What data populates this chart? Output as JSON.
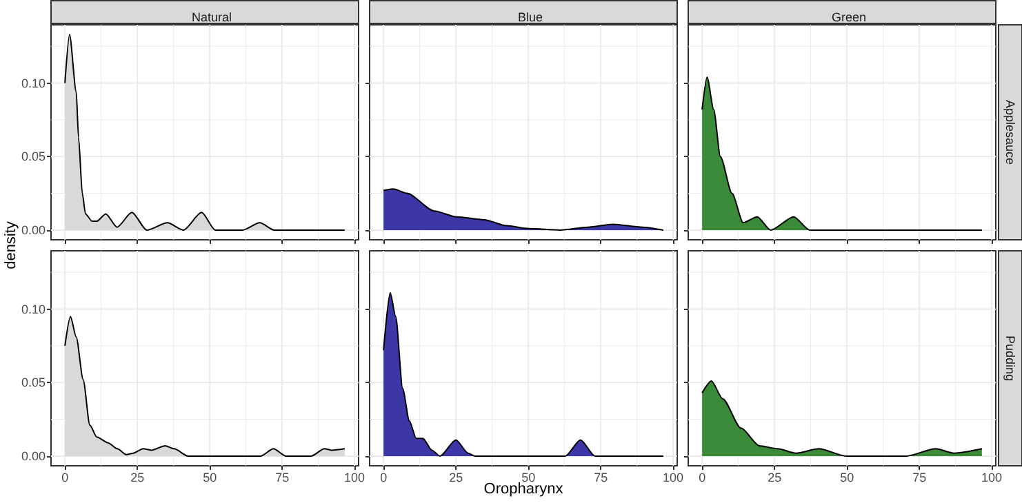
{
  "chart_data": [
    {
      "type": "area",
      "title": "Natural",
      "ylabel": "density",
      "xlim": [
        -4.8,
        101.4
      ],
      "ylim": [
        -0.0066,
        0.1396
      ],
      "xticks": [
        0,
        25,
        50,
        75,
        100
      ],
      "yticks": [
        {
          "value": 0,
          "label": "0.00"
        },
        {
          "value": 0.05,
          "label": "0.05"
        },
        {
          "value": 0.1,
          "label": "0.10"
        }
      ],
      "tick_labels": "y",
      "grid": true,
      "series": [
        {
          "color": "#d9d9d9",
          "x": [
            0,
            1.6,
            3.9,
            4.7,
            6,
            7.1,
            9.4,
            11,
            14.1,
            18,
            23.1,
            28.3,
            35.4,
            40.9,
            47.2,
            51.9,
            61.3,
            67.3,
            72.3,
            96.6
          ],
          "values": [
            0.1,
            0.133,
            0.094,
            0.063,
            0.025,
            0.011,
            0.006,
            0.006,
            0.011,
            0.002,
            0.012,
            0,
            0.005,
            0,
            0.012,
            0,
            0,
            0.005,
            0,
            0
          ]
        }
      ]
    },
    {
      "type": "area",
      "title": "Blue",
      "xlim": [
        -4.8,
        101.4
      ],
      "ylim": [
        -0.0066,
        0.1396
      ],
      "xticks": [
        0,
        25,
        50,
        75,
        100
      ],
      "yticks": [
        0,
        0.05,
        0.1
      ],
      "tick_labels": false,
      "grid": true,
      "series": [
        {
          "color": "#3c36a6",
          "x": [
            0,
            3.4,
            8.1,
            17.5,
            25.3,
            34.7,
            42.5,
            50.3,
            61,
            70.6,
            79.2,
            89.4,
            96.6
          ],
          "values": [
            0.027,
            0.028,
            0.025,
            0.013,
            0.009,
            0.007,
            0.003,
            0.001,
            0,
            0.002,
            0.004,
            0.002,
            0
          ]
        }
      ]
    },
    {
      "type": "area",
      "title": "Green",
      "annotations": [
        "Applesauce"
      ],
      "xlim": [
        -4.8,
        101.4
      ],
      "ylim": [
        -0.0066,
        0.1396
      ],
      "xticks": [
        0,
        25,
        50,
        75,
        100
      ],
      "yticks": [
        0,
        0.05,
        0.1
      ],
      "tick_labels": false,
      "grid": true,
      "series": [
        {
          "color": "#3a8a3a",
          "x": [
            0,
            1.7,
            4,
            6.3,
            10.3,
            14.2,
            19,
            23.7,
            31.6,
            37.2,
            96.6
          ],
          "values": [
            0.082,
            0.104,
            0.082,
            0.05,
            0.025,
            0.005,
            0.009,
            0,
            0.009,
            0,
            0
          ]
        }
      ]
    },
    {
      "type": "area",
      "xlim": [
        -4.8,
        101.4
      ],
      "ylim": [
        -0.0066,
        0.1396
      ],
      "xticks": [
        0,
        25,
        50,
        75,
        100
      ],
      "yticks": [
        {
          "value": 0,
          "label": "0.00"
        },
        {
          "value": 0.05,
          "label": "0.05"
        },
        {
          "value": 0.1,
          "label": "0.10"
        }
      ],
      "grid": true,
      "series": [
        {
          "color": "#d9d9d9",
          "x": [
            0,
            1.9,
            3.9,
            6.3,
            8.6,
            11,
            14.9,
            18.1,
            21.2,
            23.6,
            27,
            29.9,
            34.6,
            37.7,
            42.5,
            67.6,
            72,
            76.3,
            85,
            89.6,
            92,
            96.6
          ],
          "values": [
            0.075,
            0.095,
            0.081,
            0.052,
            0.021,
            0.013,
            0.009,
            0.005,
            0.001,
            0.002,
            0.005,
            0.004,
            0.007,
            0.005,
            0,
            0,
            0.005,
            0,
            0,
            0.005,
            0.004,
            0.005
          ]
        }
      ]
    },
    {
      "type": "area",
      "xlabel": "Oropharynx",
      "xlim": [
        -4.8,
        101.4
      ],
      "ylim": [
        -0.0066,
        0.1396
      ],
      "xticks": [
        0,
        25,
        50,
        75,
        100
      ],
      "yticks": [
        0,
        0.05,
        0.1
      ],
      "tick_labels": "x",
      "grid": true,
      "series": [
        {
          "color": "#3c36a6",
          "x": [
            0,
            2.3,
            4.2,
            6.6,
            8.9,
            11.3,
            13.6,
            16.7,
            19.5,
            25,
            29.2,
            31.6,
            62.8,
            68,
            73,
            96.6
          ],
          "values": [
            0.072,
            0.111,
            0.095,
            0.046,
            0.024,
            0.012,
            0.012,
            0.004,
            0,
            0.011,
            0.002,
            0,
            0,
            0.011,
            0,
            0
          ]
        }
      ]
    },
    {
      "type": "area",
      "annotations": [
        "Pudding"
      ],
      "xlim": [
        -4.8,
        101.4
      ],
      "ylim": [
        -0.0066,
        0.1396
      ],
      "xticks": [
        0,
        25,
        50,
        75,
        100
      ],
      "yticks": [
        0,
        0.05,
        0.1
      ],
      "tick_labels": "x",
      "grid": true,
      "series": [
        {
          "color": "#3a8a3a",
          "x": [
            0,
            3.2,
            7.1,
            13.4,
            19.8,
            26.1,
            32.4,
            40.3,
            49.8,
            70.4,
            80.7,
            87,
            96.6
          ],
          "values": [
            0.043,
            0.051,
            0.039,
            0.019,
            0.007,
            0.005,
            0.002,
            0.005,
            0,
            0,
            0.005,
            0.002,
            0.005
          ]
        }
      ]
    }
  ]
}
